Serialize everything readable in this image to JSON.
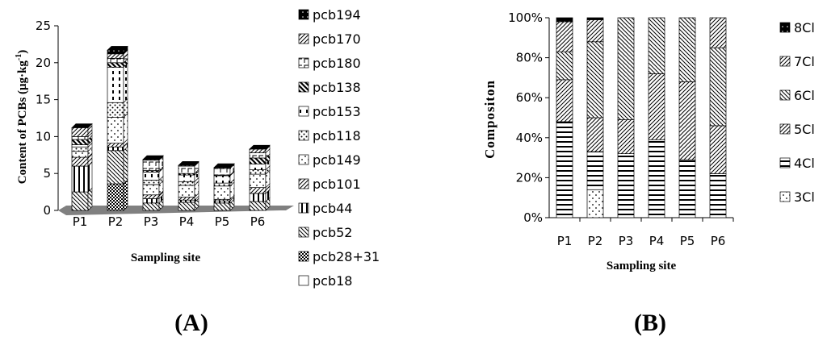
{
  "panel_labels": {
    "a": "(A)",
    "b": "(B)"
  },
  "colors": {
    "ink": "#000000",
    "floor": "#808080",
    "paper": "#ffffff"
  },
  "chart_data": [
    {
      "type": "bar",
      "stacked": true,
      "three_d": true,
      "xlabel": "Sampling site",
      "ylabel_main": "Content of PCBs (",
      "ylabel_unit": "μg·kg",
      "ylabel_exp": "-1",
      "ylabel_close": ")",
      "ylim": [
        0,
        25
      ],
      "yticks": [
        "0",
        "5",
        "10",
        "15",
        "20",
        "25"
      ],
      "categories": [
        "P1",
        "P2",
        "P3",
        "P4",
        "P5",
        "P6"
      ],
      "legend_position": "right",
      "series": [
        {
          "name": "pcb18",
          "values": [
            0,
            0,
            0,
            0,
            0,
            0
          ]
        },
        {
          "name": "pcb28+31",
          "values": [
            0,
            3.6,
            0,
            0,
            0,
            0
          ]
        },
        {
          "name": "pcb52",
          "values": [
            2.5,
            4.5,
            1.0,
            1.1,
            1.0,
            1.2
          ]
        },
        {
          "name": "pcb44",
          "values": [
            3.5,
            0.5,
            0.6,
            0.3,
            0.3,
            1.1
          ]
        },
        {
          "name": "pcb101",
          "values": [
            1.2,
            0.5,
            0.5,
            0.4,
            0.2,
            0.8
          ]
        },
        {
          "name": "pcb149",
          "values": [
            0.8,
            3.5,
            1.4,
            1.6,
            1.8,
            1.8
          ]
        },
        {
          "name": "pcb118",
          "values": [
            0.6,
            2.0,
            0.6,
            0.5,
            0.4,
            0.6
          ]
        },
        {
          "name": "pcb153",
          "values": [
            0.3,
            4.8,
            1.1,
            0.9,
            1.0,
            0.8
          ]
        },
        {
          "name": "pcb138",
          "values": [
            0.7,
            0.6,
            0.2,
            0.2,
            0.1,
            0.8
          ]
        },
        {
          "name": "pcb180",
          "values": [
            0.4,
            0.6,
            1.4,
            1.0,
            0.9,
            0.7
          ]
        },
        {
          "name": "pcb170",
          "values": [
            1.2,
            0.6,
            0.1,
            0.1,
            0.1,
            0.5
          ]
        },
        {
          "name": "pcb194",
          "values": [
            0,
            0.5,
            0,
            0,
            0,
            0
          ]
        }
      ],
      "legend_order": [
        "pcb194",
        "pcb170",
        "pcb180",
        "pcb138",
        "pcb153",
        "pcb118",
        "pcb149",
        "pcb101",
        "pcb44",
        "pcb52",
        "pcb28+31",
        "pcb18"
      ]
    },
    {
      "type": "bar",
      "stacked": true,
      "percent": true,
      "xlabel": "Sampling site",
      "ylabel": "Compositon",
      "ylim": [
        0,
        100
      ],
      "yticks": [
        "0%",
        "20%",
        "40%",
        "60%",
        "80%",
        "100%"
      ],
      "categories": [
        "P1",
        "P2",
        "P3",
        "P4",
        "P5",
        "P6"
      ],
      "legend_position": "right",
      "series": [
        {
          "name": "3Cl",
          "values": [
            0,
            14,
            0,
            0,
            0,
            0
          ]
        },
        {
          "name": "4Cl",
          "values": [
            48,
            19,
            32,
            39,
            29,
            22
          ]
        },
        {
          "name": "5Cl",
          "values": [
            21,
            17,
            17,
            33,
            39,
            24
          ]
        },
        {
          "name": "6Cl",
          "values": [
            14,
            38,
            51,
            28,
            32,
            39
          ]
        },
        {
          "name": "7Cl",
          "values": [
            15,
            11,
            0,
            0,
            0,
            15
          ]
        },
        {
          "name": "8Cl",
          "values": [
            2,
            1,
            0,
            0,
            0,
            0
          ]
        }
      ],
      "legend_order": [
        "8Cl",
        "7Cl",
        "6Cl",
        "5Cl",
        "4Cl",
        "3Cl"
      ]
    }
  ]
}
